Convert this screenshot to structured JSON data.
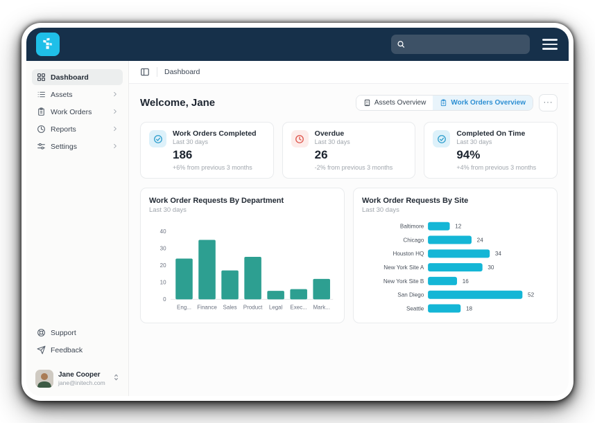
{
  "navbar": {
    "search_placeholder": "",
    "search_value": ""
  },
  "sidebar": {
    "items": [
      {
        "label": "Dashboard",
        "icon": "grid-icon",
        "active": true
      },
      {
        "label": "Assets",
        "icon": "list-icon",
        "active": false
      },
      {
        "label": "Work Orders",
        "icon": "clipboard-icon",
        "active": false
      },
      {
        "label": "Reports",
        "icon": "reports-icon",
        "active": false
      },
      {
        "label": "Settings",
        "icon": "sliders-icon",
        "active": false
      }
    ],
    "footer_items": [
      {
        "label": "Support",
        "icon": "lifebuoy-icon"
      },
      {
        "label": "Feedback",
        "icon": "send-icon"
      }
    ],
    "profile": {
      "name": "Jane Cooper",
      "email": "jane@initech.com"
    }
  },
  "breadcrumb": {
    "label": "Dashboard"
  },
  "header": {
    "welcome": "Welcome, Jane",
    "buttons": [
      {
        "label": "Assets Overview",
        "icon": "building-icon",
        "active": false
      },
      {
        "label": "Work Orders Overview",
        "icon": "clipboard-icon",
        "active": true
      }
    ],
    "more_label": "···"
  },
  "stats": [
    {
      "title": "Work Orders Completed",
      "subtitle": "Last 30 days",
      "value": "186",
      "footnote": "+6% from previous 3 months",
      "icon": "check-circle-icon",
      "accent": "blue"
    },
    {
      "title": "Overdue",
      "subtitle": "Last 30 days",
      "value": "26",
      "footnote": "-2% from previous 3 months",
      "icon": "clock-icon",
      "accent": "red"
    },
    {
      "title": "Completed On Time",
      "subtitle": "Last 30 days",
      "value": "94%",
      "footnote": "+4% from previous 3 months",
      "icon": "check-circle-icon",
      "accent": "blue"
    }
  ],
  "chart_data": [
    {
      "type": "bar",
      "title": "Work Order Requests By Department",
      "subtitle": "Last 30 days",
      "categories": [
        "Eng...",
        "Finance",
        "Sales",
        "Product",
        "Legal",
        "Exec...",
        "Mark..."
      ],
      "values": [
        24,
        35,
        17,
        25,
        5,
        6,
        12
      ],
      "ylim": [
        0,
        40
      ],
      "yticks": [
        0,
        10,
        20,
        30,
        40
      ],
      "grid": false,
      "legend": "none",
      "bar_color": "#2d9f91"
    },
    {
      "type": "bar-horizontal",
      "title": "Work Order Requests By Site",
      "subtitle": "Last 30 days",
      "categories": [
        "Baltimore",
        "Chicago",
        "Houston HQ",
        "New York Site A",
        "New York Site B",
        "San Diego",
        "Seattle"
      ],
      "values": [
        12,
        24,
        34,
        30,
        16,
        52,
        18
      ],
      "xlim": [
        0,
        55
      ],
      "grid": false,
      "legend": "none",
      "data_labels": true,
      "bar_color": "#14b6d6"
    }
  ],
  "colors": {
    "navbar_bg": "#16304a",
    "logo_bg": "#1fbfe8",
    "accent_blue": "#2d8fd3",
    "accent_blue_bg": "#e9f4fb",
    "stat_icon_blue": "#2a9ccc",
    "stat_icon_red": "#dd5147",
    "teal_bar": "#2d9f91",
    "cyan_bar": "#14b6d6"
  }
}
